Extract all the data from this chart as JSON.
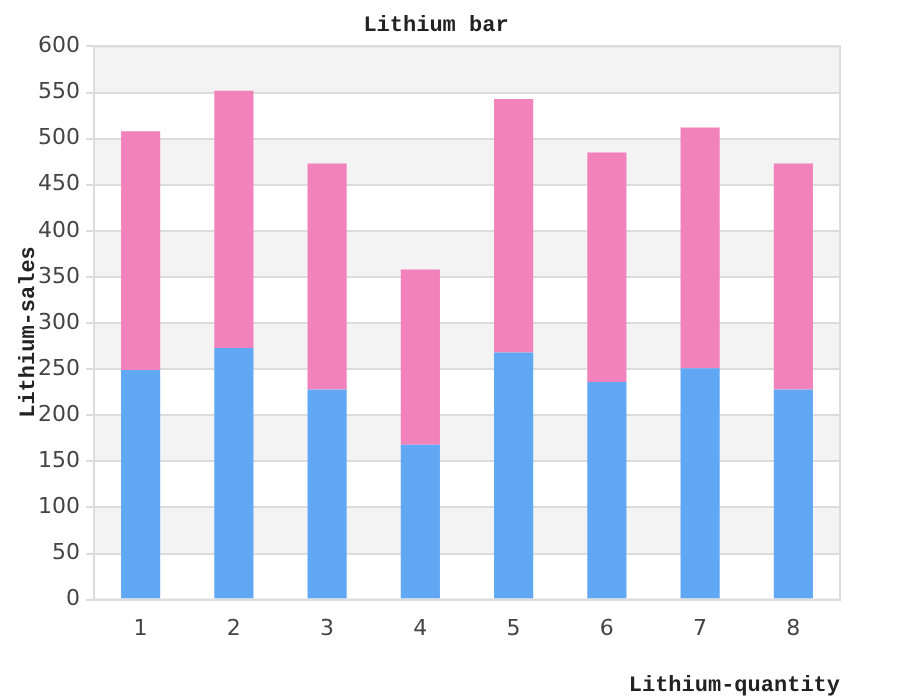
{
  "chart_data": {
    "type": "bar",
    "title": "Lithium bar",
    "xlabel": "Lithium-quantity",
    "ylabel": "Lithium-sales",
    "categories": [
      "1",
      "2",
      "3",
      "4",
      "5",
      "6",
      "7",
      "8"
    ],
    "stacked": true,
    "series": [
      {
        "color": "#60a8f4",
        "values": [
          249,
          273,
          228,
          168,
          268,
          236,
          251,
          228
        ]
      },
      {
        "color": "#f282bb",
        "values": [
          259,
          279,
          245,
          190,
          275,
          249,
          261,
          245
        ]
      }
    ],
    "ylim": [
      0,
      600
    ],
    "yticks": [
      0,
      50,
      100,
      150,
      200,
      250,
      300,
      350,
      400,
      450,
      500,
      550,
      600
    ],
    "grid": "y"
  }
}
